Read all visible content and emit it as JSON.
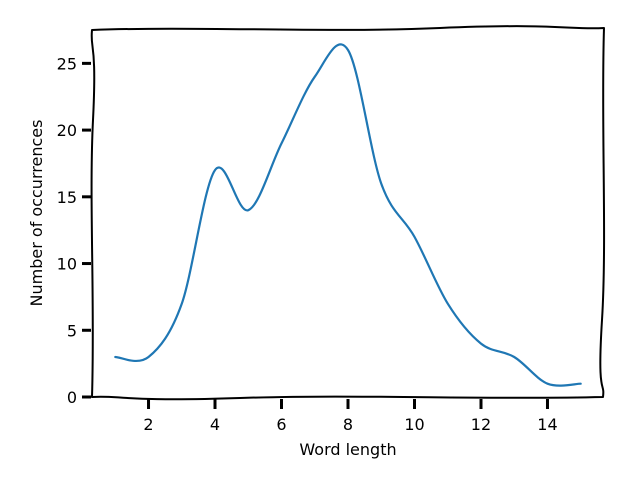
{
  "chart_data": {
    "type": "line",
    "title": "",
    "xlabel": "Word length",
    "ylabel": "Number of occurrences",
    "xlim": [
      0.3,
      15.7
    ],
    "ylim": [
      0,
      27.5
    ],
    "xticks": [
      2,
      4,
      6,
      8,
      10,
      12,
      14
    ],
    "yticks": [
      0,
      5,
      10,
      15,
      20,
      25
    ],
    "xtick_labels": [
      "2",
      "4",
      "6",
      "8",
      "10",
      "12",
      "14"
    ],
    "ytick_labels": [
      "0",
      "5",
      "10",
      "15",
      "20",
      "25"
    ],
    "grid": false,
    "legend": "none",
    "series": [
      {
        "color": "#1f77b4",
        "x": [
          1,
          2,
          3,
          4,
          5,
          6,
          7,
          8,
          9,
          10,
          11,
          12,
          13,
          14,
          15
        ],
        "y": [
          3,
          3,
          7,
          17,
          14,
          19,
          24,
          26,
          16,
          12,
          7,
          4,
          3,
          1,
          1
        ]
      }
    ]
  }
}
